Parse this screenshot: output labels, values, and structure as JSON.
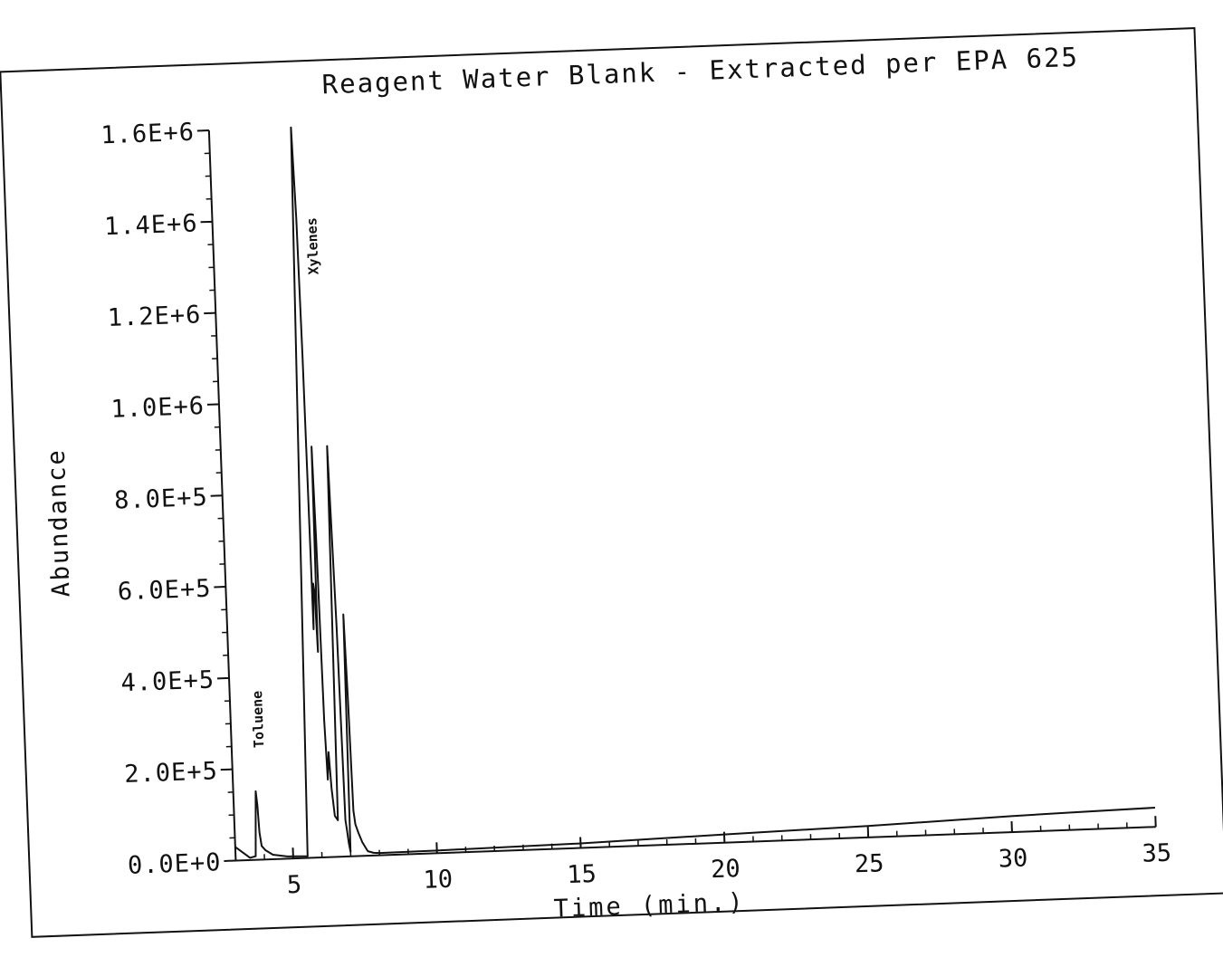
{
  "chart_data": {
    "type": "line",
    "title": "Reagent Water Blank - Extracted per EPA 625",
    "xlabel": "Time (min.)",
    "ylabel": "Abundance",
    "xlim": [
      3,
      35
    ],
    "ylim": [
      0,
      1600000
    ],
    "x_ticks": [
      5,
      10,
      15,
      20,
      25,
      30,
      35
    ],
    "x_tick_labels": [
      "5",
      "10",
      "15",
      "20",
      "25",
      "30",
      "35"
    ],
    "y_ticks": [
      0,
      200000,
      400000,
      600000,
      800000,
      1000000,
      1200000,
      1400000,
      1600000
    ],
    "y_tick_labels": [
      "0.0E+0",
      "2.0E+5",
      "4.0E+5",
      "6.0E+5",
      "8.0E+5",
      "1.0E+6",
      "1.2E+6",
      "1.4E+6",
      "1.6E+6"
    ],
    "grid": false,
    "series": [
      {
        "x": [
          3.0,
          3.3,
          3.5,
          3.7,
          3.78,
          3.82,
          3.86,
          3.92,
          4.05,
          4.3,
          4.8,
          5.5,
          5.85,
          5.92,
          5.96,
          6.0,
          6.04,
          6.08,
          6.12,
          6.16,
          6.2,
          6.25,
          6.3,
          6.36,
          6.42,
          6.5,
          6.6,
          6.7,
          6.8,
          6.86,
          6.9,
          6.95,
          7.0,
          7.05,
          7.1,
          7.15,
          7.2,
          7.3,
          7.42,
          7.6,
          7.8,
          8.0,
          10,
          15,
          20,
          25,
          30,
          32,
          35
        ],
        "y": [
          30000,
          15000,
          5000,
          8000,
          150000,
          120000,
          60000,
          30000,
          20000,
          10000,
          5000,
          4000,
          1600000,
          1400000,
          1100000,
          500000,
          600000,
          580000,
          450000,
          900000,
          700000,
          300000,
          170000,
          230000,
          150000,
          90000,
          80000,
          900000,
          500000,
          80000,
          60000,
          30000,
          10000,
          530000,
          350000,
          100000,
          70000,
          50000,
          30000,
          10000,
          6000,
          5000,
          6000,
          10000,
          18000,
          25000,
          35000,
          38000,
          42000
        ]
      }
    ],
    "annotations": [
      {
        "text": "Toluene",
        "x": 3.8
      },
      {
        "text": "Xylenes",
        "x": 6.3
      }
    ]
  }
}
